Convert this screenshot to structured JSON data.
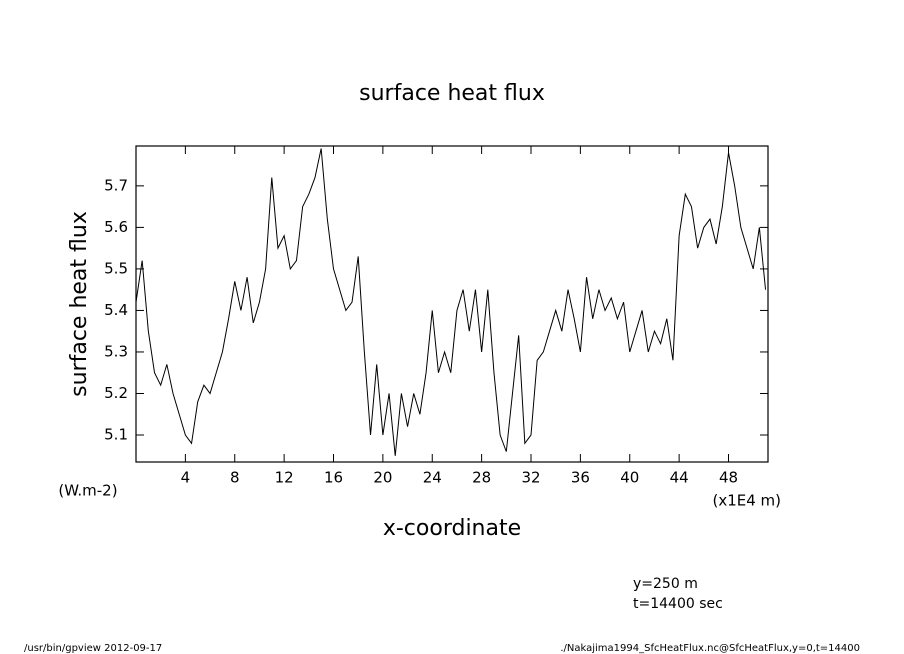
{
  "chart_data": {
    "type": "line",
    "title": "surface heat flux",
    "ylabel": "surface heat flux",
    "yunits": "(W.m-2)",
    "xlabel": "x-coordinate",
    "xunits": "(x1E4 m)",
    "annotations": [
      "y=250 m",
      "t=14400 sec"
    ],
    "footer_left": "/usr/bin/gpview 2012-09-17",
    "footer_right": "./Nakajima1994_SfcHeatFlux.nc@SfcHeatFlux,y=0,t=14400",
    "color": "#000000",
    "xlim": [
      0,
      51.2
    ],
    "ylim": [
      5.035,
      5.796
    ],
    "xticks": [
      4,
      8,
      12,
      16,
      20,
      24,
      28,
      32,
      36,
      40,
      44,
      48
    ],
    "yticks": [
      5.1,
      5.2,
      5.3,
      5.4,
      5.5,
      5.6,
      5.7
    ],
    "x": [
      0,
      0.5,
      1,
      1.5,
      2,
      2.5,
      3,
      3.5,
      4,
      4.5,
      5,
      5.5,
      6,
      6.5,
      7,
      7.5,
      8,
      8.5,
      9,
      9.5,
      10,
      10.5,
      11,
      11.5,
      12,
      12.5,
      13,
      13.5,
      14,
      14.5,
      15,
      15.5,
      16,
      16.5,
      17,
      17.5,
      18,
      18.5,
      19,
      19.5,
      20,
      20.5,
      21,
      21.5,
      22,
      22.5,
      23,
      23.5,
      24,
      24.5,
      25,
      25.5,
      26,
      26.5,
      27,
      27.5,
      28,
      28.5,
      29,
      29.5,
      30,
      30.5,
      31,
      31.5,
      32,
      32.5,
      33,
      33.5,
      34,
      34.5,
      35,
      35.5,
      36,
      36.5,
      37,
      37.5,
      38,
      38.5,
      39,
      39.5,
      40,
      40.5,
      41,
      41.5,
      42,
      42.5,
      43,
      43.5,
      44,
      44.5,
      45,
      45.5,
      46,
      46.5,
      47,
      47.5,
      48,
      48.5,
      49,
      49.5,
      50,
      50.5,
      51
    ],
    "values": [
      5.42,
      5.52,
      5.35,
      5.25,
      5.22,
      5.27,
      5.2,
      5.15,
      5.1,
      5.08,
      5.18,
      5.22,
      5.2,
      5.25,
      5.3,
      5.38,
      5.47,
      5.4,
      5.48,
      5.37,
      5.42,
      5.5,
      5.72,
      5.55,
      5.58,
      5.5,
      5.52,
      5.65,
      5.68,
      5.72,
      5.79,
      5.62,
      5.5,
      5.45,
      5.4,
      5.42,
      5.53,
      5.3,
      5.1,
      5.27,
      5.1,
      5.2,
      5.05,
      5.2,
      5.12,
      5.2,
      5.15,
      5.25,
      5.4,
      5.25,
      5.3,
      5.25,
      5.4,
      5.45,
      5.35,
      5.45,
      5.3,
      5.45,
      5.25,
      5.1,
      5.06,
      5.2,
      5.34,
      5.08,
      5.1,
      5.28,
      5.3,
      5.35,
      5.4,
      5.35,
      5.45,
      5.38,
      5.3,
      5.48,
      5.38,
      5.45,
      5.4,
      5.43,
      5.38,
      5.42,
      5.3,
      5.35,
      5.4,
      5.3,
      5.35,
      5.32,
      5.38,
      5.28,
      5.58,
      5.68,
      5.65,
      5.55,
      5.6,
      5.62,
      5.56,
      5.65,
      5.78,
      5.7,
      5.6,
      5.55,
      5.5,
      5.6,
      5.45
    ]
  }
}
